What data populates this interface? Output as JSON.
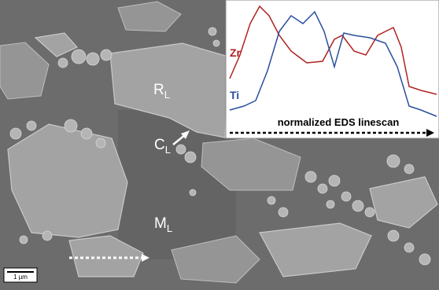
{
  "labels": {
    "rl": {
      "main": "R",
      "sub": "L"
    },
    "cl": {
      "main": "C",
      "sub": "L"
    },
    "ml": {
      "main": "M",
      "sub": "L"
    }
  },
  "inset": {
    "zr": "Zr",
    "ti": "Ti",
    "caption": "normalized EDS linescan"
  },
  "scale_bar": "1 µm"
}
